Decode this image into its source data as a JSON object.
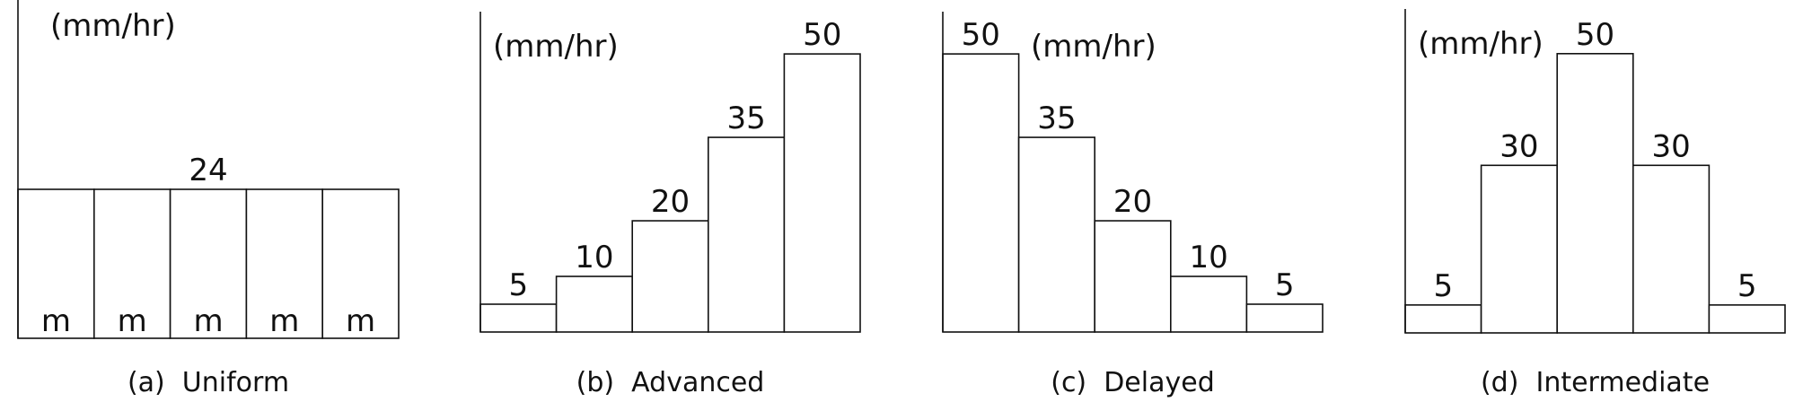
{
  "chart_data": [
    {
      "type": "bar",
      "title": "(a)  Uniform",
      "ylabel": "(mm/hr)",
      "categories": [
        "m",
        "m",
        "m",
        "m",
        "m"
      ],
      "values": [
        24,
        24,
        24,
        24,
        24
      ],
      "ylim": [
        0,
        54.5
      ]
    },
    {
      "type": "bar",
      "title": "(b)  Advanced",
      "ylabel": "(mm/hr)",
      "categories": [
        null,
        null,
        null,
        null,
        null
      ],
      "values": [
        5,
        10,
        20,
        35,
        50
      ],
      "ylim": [
        0,
        57.6
      ]
    },
    {
      "type": "bar",
      "title": "(c)  Delayed",
      "ylabel": "(mm/hr)",
      "categories": [
        null,
        null,
        null,
        null,
        null
      ],
      "values": [
        50,
        35,
        20,
        10,
        5
      ],
      "ylim": [
        0,
        57.6
      ]
    },
    {
      "type": "bar",
      "title": "(d)  Intermediate",
      "ylabel": "(mm/hr)",
      "categories": [
        null,
        null,
        null,
        null,
        null
      ],
      "values": [
        5,
        30,
        50,
        30,
        5
      ],
      "ylim": [
        0,
        58
      ]
    }
  ]
}
